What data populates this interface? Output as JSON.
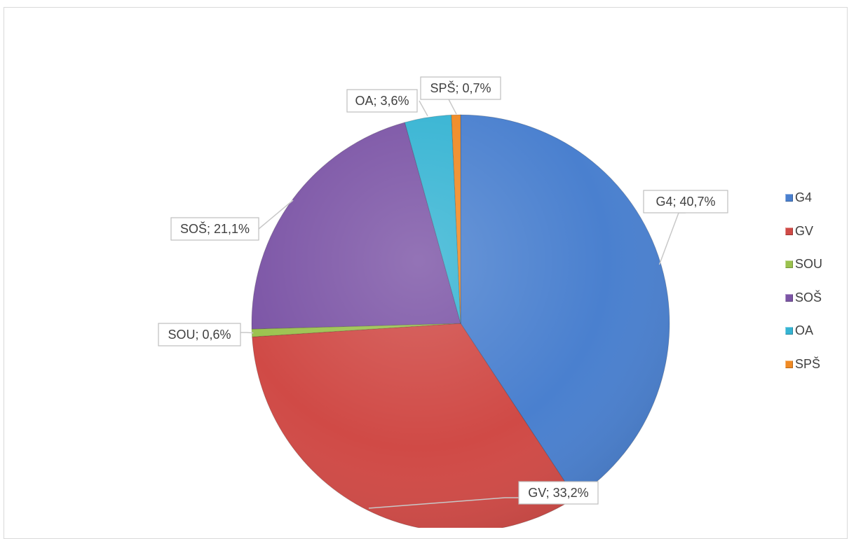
{
  "chart_data": {
    "type": "pie",
    "categories": [
      "G4",
      "GV",
      "SOU",
      "SOŠ",
      "OA",
      "SPŠ"
    ],
    "values": [
      40.7,
      33.2,
      0.6,
      21.1,
      3.6,
      0.7
    ],
    "data_labels": [
      "G4; 40,7%",
      "GV; 33,2%",
      "SOU; 0,6%",
      "SOŠ; 21,1%",
      "OA; 3,6%",
      "SPŠ; 0,7%"
    ],
    "colors": [
      "#4a80cf",
      "#d04a46",
      "#9bc24e",
      "#7c55a6",
      "#36b4d3",
      "#f08a24"
    ],
    "start_angle": "12 o'clock",
    "direction": "clockwise",
    "legend_position": "right"
  }
}
